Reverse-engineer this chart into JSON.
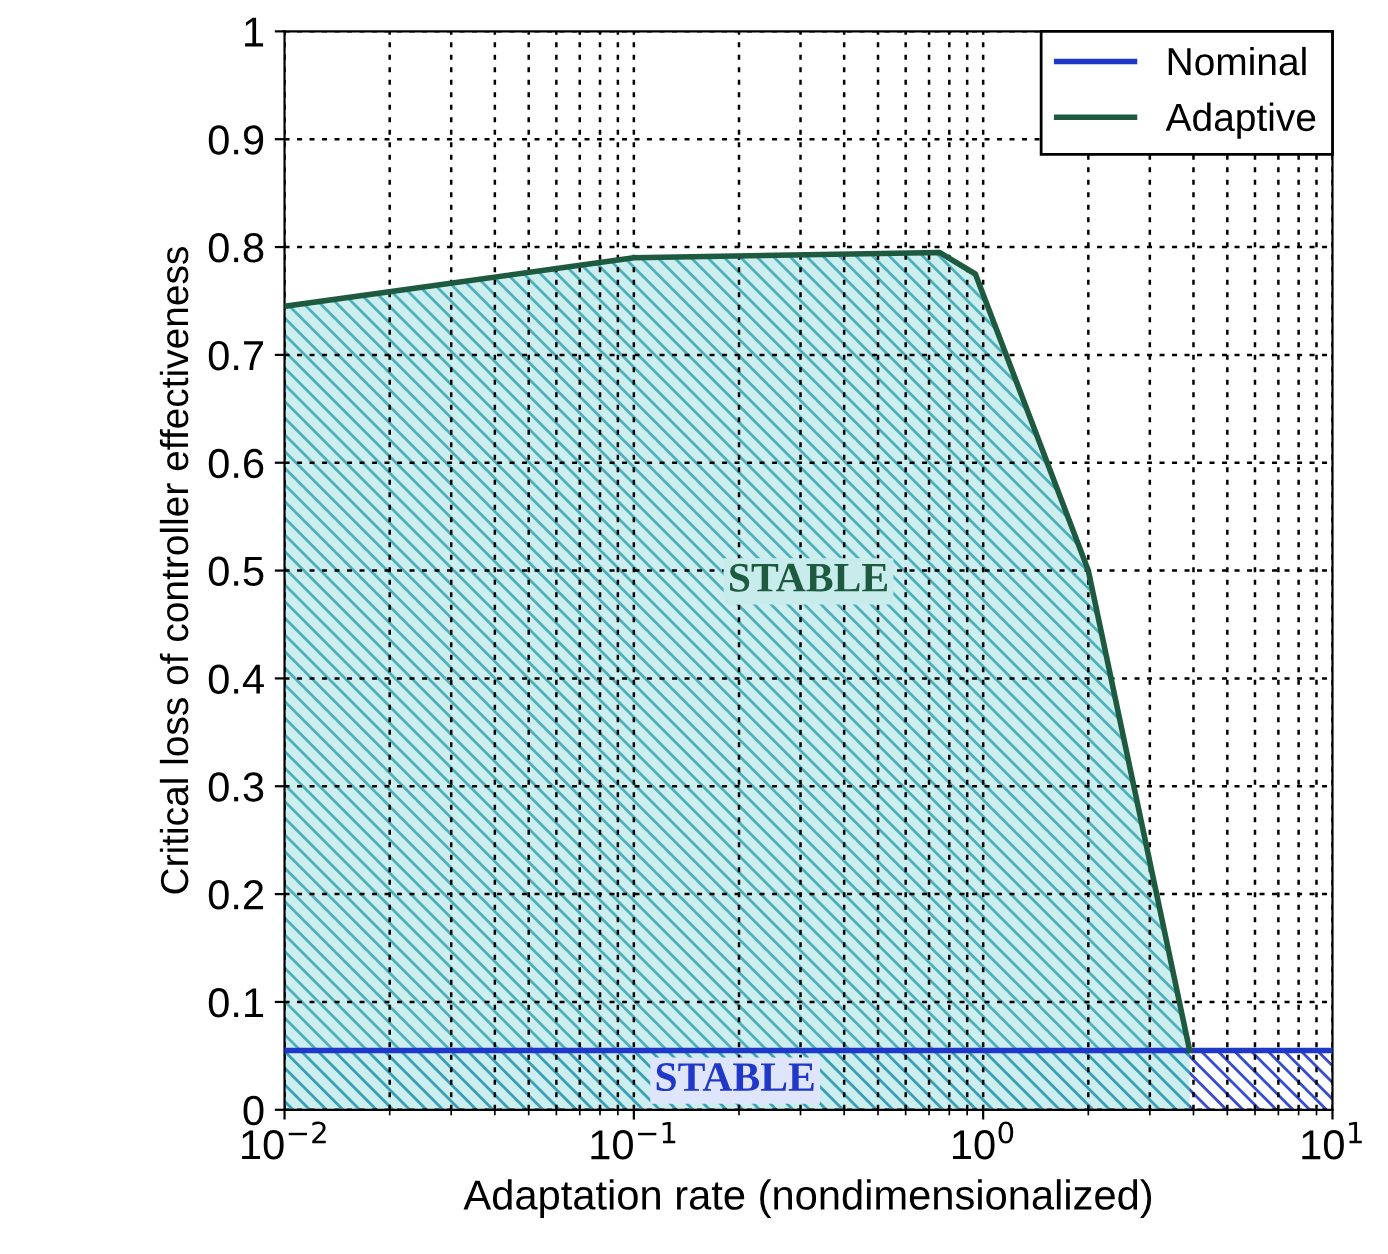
{
  "chart_data": {
    "type": "area",
    "xlabel": "Adaptation rate (nondimensionalized)",
    "ylabel": "Critical loss of controller effectiveness",
    "log": "x",
    "xlim": [
      0.01,
      10
    ],
    "ylim": [
      0,
      1
    ],
    "xticks": [
      {
        "value": 0.01,
        "label": "10$^{−2}$"
      },
      {
        "value": 0.1,
        "label": "10$^{−1}$"
      },
      {
        "value": 1,
        "label": "10$^{0}$"
      },
      {
        "value": 10,
        "label": "10$^{1}$"
      }
    ],
    "yticks": [
      0,
      0.1,
      0.2,
      0.3,
      0.4,
      0.5,
      0.6,
      0.7,
      0.8,
      0.9,
      1
    ],
    "grid": true,
    "legend": "top right",
    "series": [
      {
        "name": "Nominal",
        "color": "#2038c8",
        "x": [
          0.01,
          10
        ],
        "values": [
          0.055,
          0.055
        ]
      },
      {
        "name": "Adaptive",
        "color": "#1d5a40",
        "x": [
          0.01,
          0.1,
          0.75,
          0.95,
          2,
          3.9
        ],
        "values": [
          0.745,
          0.79,
          0.795,
          0.775,
          0.5,
          0.055
        ]
      }
    ],
    "annotations": [
      "STABLE",
      "STABLE"
    ]
  }
}
